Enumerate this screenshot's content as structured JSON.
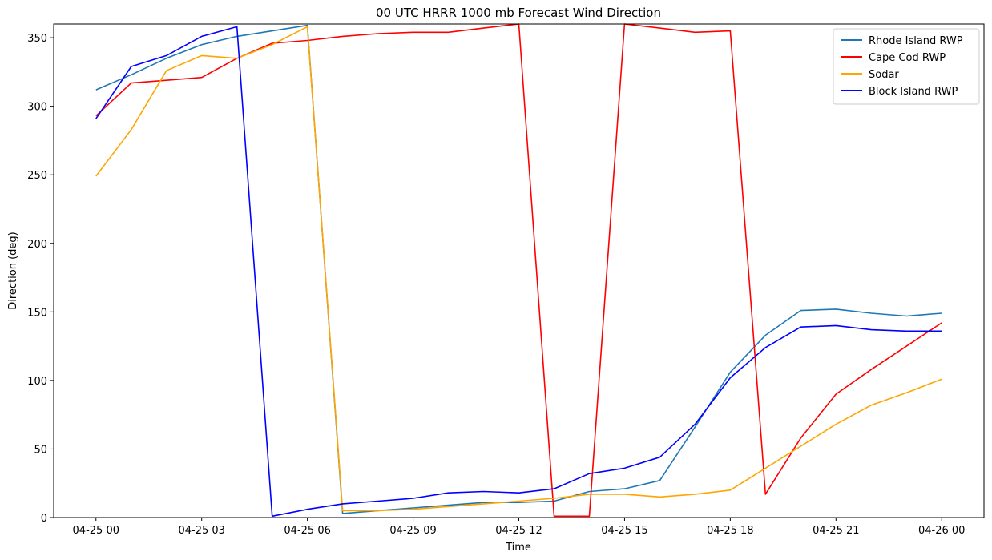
{
  "chart_data": {
    "type": "line",
    "title": "00 UTC HRRR 1000 mb Forecast Wind Direction",
    "xlabel": "Time",
    "ylabel": "Direction (deg)",
    "xlim": [
      -1.2,
      25.2
    ],
    "ylim": [
      0,
      360
    ],
    "xticks": [
      {
        "value": 0,
        "label": "04-25 00"
      },
      {
        "value": 3,
        "label": "04-25 03"
      },
      {
        "value": 6,
        "label": "04-25 06"
      },
      {
        "value": 9,
        "label": "04-25 09"
      },
      {
        "value": 12,
        "label": "04-25 12"
      },
      {
        "value": 15,
        "label": "04-25 15"
      },
      {
        "value": 18,
        "label": "04-25 18"
      },
      {
        "value": 21,
        "label": "04-25 21"
      },
      {
        "value": 24,
        "label": "04-26 00"
      }
    ],
    "yticks": [
      0,
      50,
      100,
      150,
      200,
      250,
      300,
      350
    ],
    "grid": false,
    "legend_position": "top-right",
    "x_hours": [
      0,
      1,
      2,
      3,
      4,
      5,
      6,
      7,
      8,
      9,
      10,
      11,
      12,
      13,
      14,
      15,
      16,
      17,
      18,
      19,
      20,
      21,
      22,
      23,
      24
    ],
    "series": [
      {
        "name": "Rhode Island RWP",
        "color": "#1f77b4",
        "values": [
          312,
          323,
          335,
          345,
          351,
          355,
          359,
          3,
          5,
          7,
          9,
          11,
          11,
          12,
          19,
          21,
          27,
          66,
          106,
          133,
          151,
          152,
          149,
          147,
          149
        ]
      },
      {
        "name": "Cape Cod RWP",
        "color": "#ff0000",
        "values": [
          293,
          317,
          319,
          321,
          335,
          346,
          348,
          351,
          353,
          354,
          354,
          357,
          360,
          1,
          1,
          360,
          357,
          354,
          355,
          17,
          58,
          90,
          108,
          125,
          142
        ]
      },
      {
        "name": "Sodar",
        "color": "#ffa500",
        "values": [
          249,
          283,
          326,
          337,
          335,
          345,
          358,
          5,
          5,
          6,
          8,
          10,
          12,
          14,
          17,
          17,
          15,
          17,
          20,
          36,
          52,
          68,
          82,
          91,
          101
        ]
      },
      {
        "name": "Block Island RWP",
        "color": "#0000ff",
        "values": [
          291,
          329,
          337,
          351,
          358,
          1,
          6,
          10,
          12,
          14,
          18,
          19,
          18,
          21,
          32,
          36,
          44,
          68,
          102,
          124,
          139,
          140,
          137,
          136,
          136
        ]
      }
    ]
  }
}
